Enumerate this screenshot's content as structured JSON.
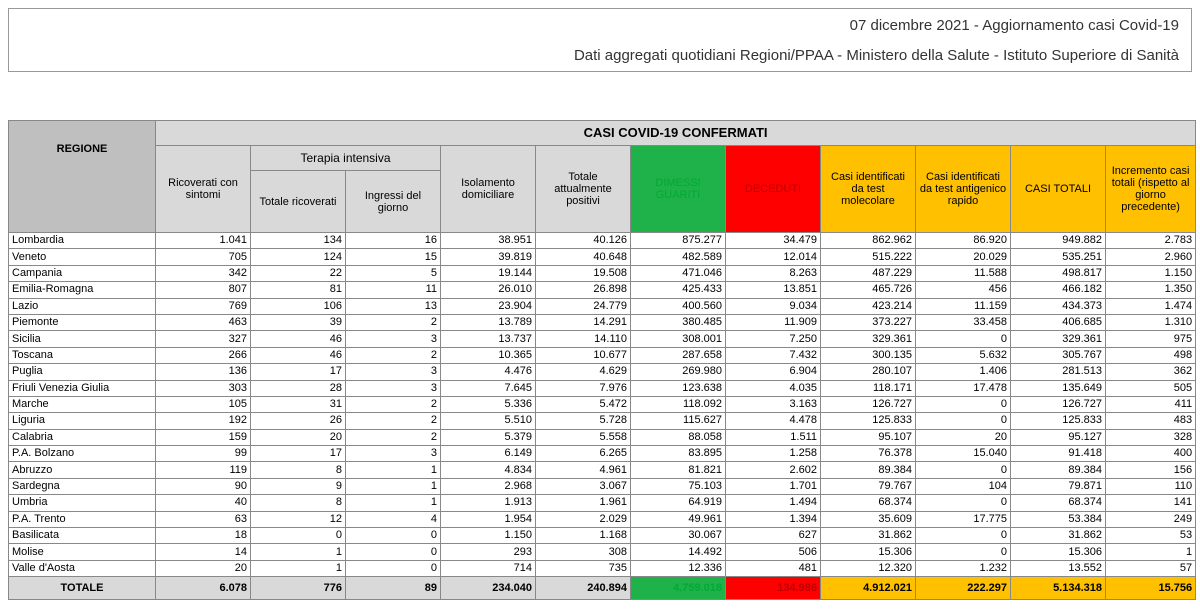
{
  "header": {
    "title": "07 dicembre 2021 - Aggiornamento casi Covid-19",
    "subtitle": "Dati aggregati quotidiani Regioni/PPAA - Ministero della Salute - Istituto Superiore di Sanità"
  },
  "table": {
    "group_title": "CASI COVID-19 CONFERMATI",
    "region_header": "REGIONE",
    "ricoverati_header": "Ricoverati con sintomi",
    "terapia_header": "Terapia intensiva",
    "terapia_subheaders": [
      "Totale ricoverati",
      "Ingressi del giorno"
    ],
    "other_headers": [
      "Isolamento domiciliare",
      "Totale attualmente positivi",
      "DIMESSI GUARITI",
      "DECEDUTI",
      "Casi identificati da test molecolare",
      "Casi identificati da test antigenico rapido",
      "CASI TOTALI",
      "Incremento casi totali (rispetto al giorno precedente)"
    ],
    "rows": [
      [
        "Lombardia",
        "1.041",
        "134",
        "16",
        "38.951",
        "40.126",
        "875.277",
        "34.479",
        "862.962",
        "86.920",
        "949.882",
        "2.783"
      ],
      [
        "Veneto",
        "705",
        "124",
        "15",
        "39.819",
        "40.648",
        "482.589",
        "12.014",
        "515.222",
        "20.029",
        "535.251",
        "2.960"
      ],
      [
        "Campania",
        "342",
        "22",
        "5",
        "19.144",
        "19.508",
        "471.046",
        "8.263",
        "487.229",
        "11.588",
        "498.817",
        "1.150"
      ],
      [
        "Emilia-Romagna",
        "807",
        "81",
        "11",
        "26.010",
        "26.898",
        "425.433",
        "13.851",
        "465.726",
        "456",
        "466.182",
        "1.350"
      ],
      [
        "Lazio",
        "769",
        "106",
        "13",
        "23.904",
        "24.779",
        "400.560",
        "9.034",
        "423.214",
        "11.159",
        "434.373",
        "1.474"
      ],
      [
        "Piemonte",
        "463",
        "39",
        "2",
        "13.789",
        "14.291",
        "380.485",
        "11.909",
        "373.227",
        "33.458",
        "406.685",
        "1.310"
      ],
      [
        "Sicilia",
        "327",
        "46",
        "3",
        "13.737",
        "14.110",
        "308.001",
        "7.250",
        "329.361",
        "0",
        "329.361",
        "975"
      ],
      [
        "Toscana",
        "266",
        "46",
        "2",
        "10.365",
        "10.677",
        "287.658",
        "7.432",
        "300.135",
        "5.632",
        "305.767",
        "498"
      ],
      [
        "Puglia",
        "136",
        "17",
        "3",
        "4.476",
        "4.629",
        "269.980",
        "6.904",
        "280.107",
        "1.406",
        "281.513",
        "362"
      ],
      [
        "Friuli Venezia Giulia",
        "303",
        "28",
        "3",
        "7.645",
        "7.976",
        "123.638",
        "4.035",
        "118.171",
        "17.478",
        "135.649",
        "505"
      ],
      [
        "Marche",
        "105",
        "31",
        "2",
        "5.336",
        "5.472",
        "118.092",
        "3.163",
        "126.727",
        "0",
        "126.727",
        "411"
      ],
      [
        "Liguria",
        "192",
        "26",
        "2",
        "5.510",
        "5.728",
        "115.627",
        "4.478",
        "125.833",
        "0",
        "125.833",
        "483"
      ],
      [
        "Calabria",
        "159",
        "20",
        "2",
        "5.379",
        "5.558",
        "88.058",
        "1.511",
        "95.107",
        "20",
        "95.127",
        "328"
      ],
      [
        "P.A. Bolzano",
        "99",
        "17",
        "3",
        "6.149",
        "6.265",
        "83.895",
        "1.258",
        "76.378",
        "15.040",
        "91.418",
        "400"
      ],
      [
        "Abruzzo",
        "119",
        "8",
        "1",
        "4.834",
        "4.961",
        "81.821",
        "2.602",
        "89.384",
        "0",
        "89.384",
        "156"
      ],
      [
        "Sardegna",
        "90",
        "9",
        "1",
        "2.968",
        "3.067",
        "75.103",
        "1.701",
        "79.767",
        "104",
        "79.871",
        "110"
      ],
      [
        "Umbria",
        "40",
        "8",
        "1",
        "1.913",
        "1.961",
        "64.919",
        "1.494",
        "68.374",
        "0",
        "68.374",
        "141"
      ],
      [
        "P.A. Trento",
        "63",
        "12",
        "4",
        "1.954",
        "2.029",
        "49.961",
        "1.394",
        "35.609",
        "17.775",
        "53.384",
        "249"
      ],
      [
        "Basilicata",
        "18",
        "0",
        "0",
        "1.150",
        "1.168",
        "30.067",
        "627",
        "31.862",
        "0",
        "31.862",
        "53"
      ],
      [
        "Molise",
        "14",
        "1",
        "0",
        "293",
        "308",
        "14.492",
        "506",
        "15.306",
        "0",
        "15.306",
        "1"
      ],
      [
        "Valle d'Aosta",
        "20",
        "1",
        "0",
        "714",
        "735",
        "12.336",
        "481",
        "12.320",
        "1.232",
        "13.552",
        "57"
      ]
    ],
    "total": [
      "TOTALE",
      "6.078",
      "776",
      "89",
      "234.040",
      "240.894",
      "4.759.018",
      "134.986",
      "4.912.021",
      "222.297",
      "5.134.318",
      "15.756"
    ]
  }
}
